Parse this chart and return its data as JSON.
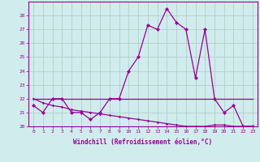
{
  "xlabel": "Windchill (Refroidissement éolien,°C)",
  "hours": [
    0,
    1,
    2,
    3,
    4,
    5,
    6,
    7,
    8,
    9,
    10,
    11,
    12,
    13,
    14,
    15,
    16,
    17,
    18,
    19,
    20,
    21,
    22,
    23
  ],
  "line1": [
    21.5,
    21.0,
    22.0,
    22.0,
    21.0,
    21.0,
    20.5,
    21.0,
    22.0,
    22.0,
    24.0,
    25.0,
    27.3,
    27.0,
    28.5,
    27.5,
    27.0,
    23.5,
    27.0,
    22.0,
    21.0,
    21.5,
    20.0,
    20.0
  ],
  "line2": [
    22.0,
    22.0,
    22.0,
    22.0,
    22.0,
    22.0,
    22.0,
    22.0,
    22.0,
    22.0,
    22.0,
    22.0,
    22.0,
    22.0,
    22.0,
    22.0,
    22.0,
    22.0,
    22.0,
    22.0,
    22.0,
    22.0,
    22.0,
    22.0
  ],
  "line3": [
    22.0,
    21.7,
    21.5,
    21.4,
    21.2,
    21.1,
    21.0,
    20.9,
    20.8,
    20.7,
    20.6,
    20.5,
    20.4,
    20.3,
    20.2,
    20.1,
    20.0,
    20.0,
    20.0,
    20.1,
    20.1,
    20.0,
    20.0,
    20.0
  ],
  "line_color": "#990099",
  "bg_color": "#d0ecec",
  "grid_color": "#b0c8c8",
  "ylim": [
    20,
    29
  ],
  "yticks": [
    20,
    21,
    22,
    23,
    24,
    25,
    26,
    27,
    28
  ],
  "markersize": 2.5,
  "linewidth": 0.9
}
